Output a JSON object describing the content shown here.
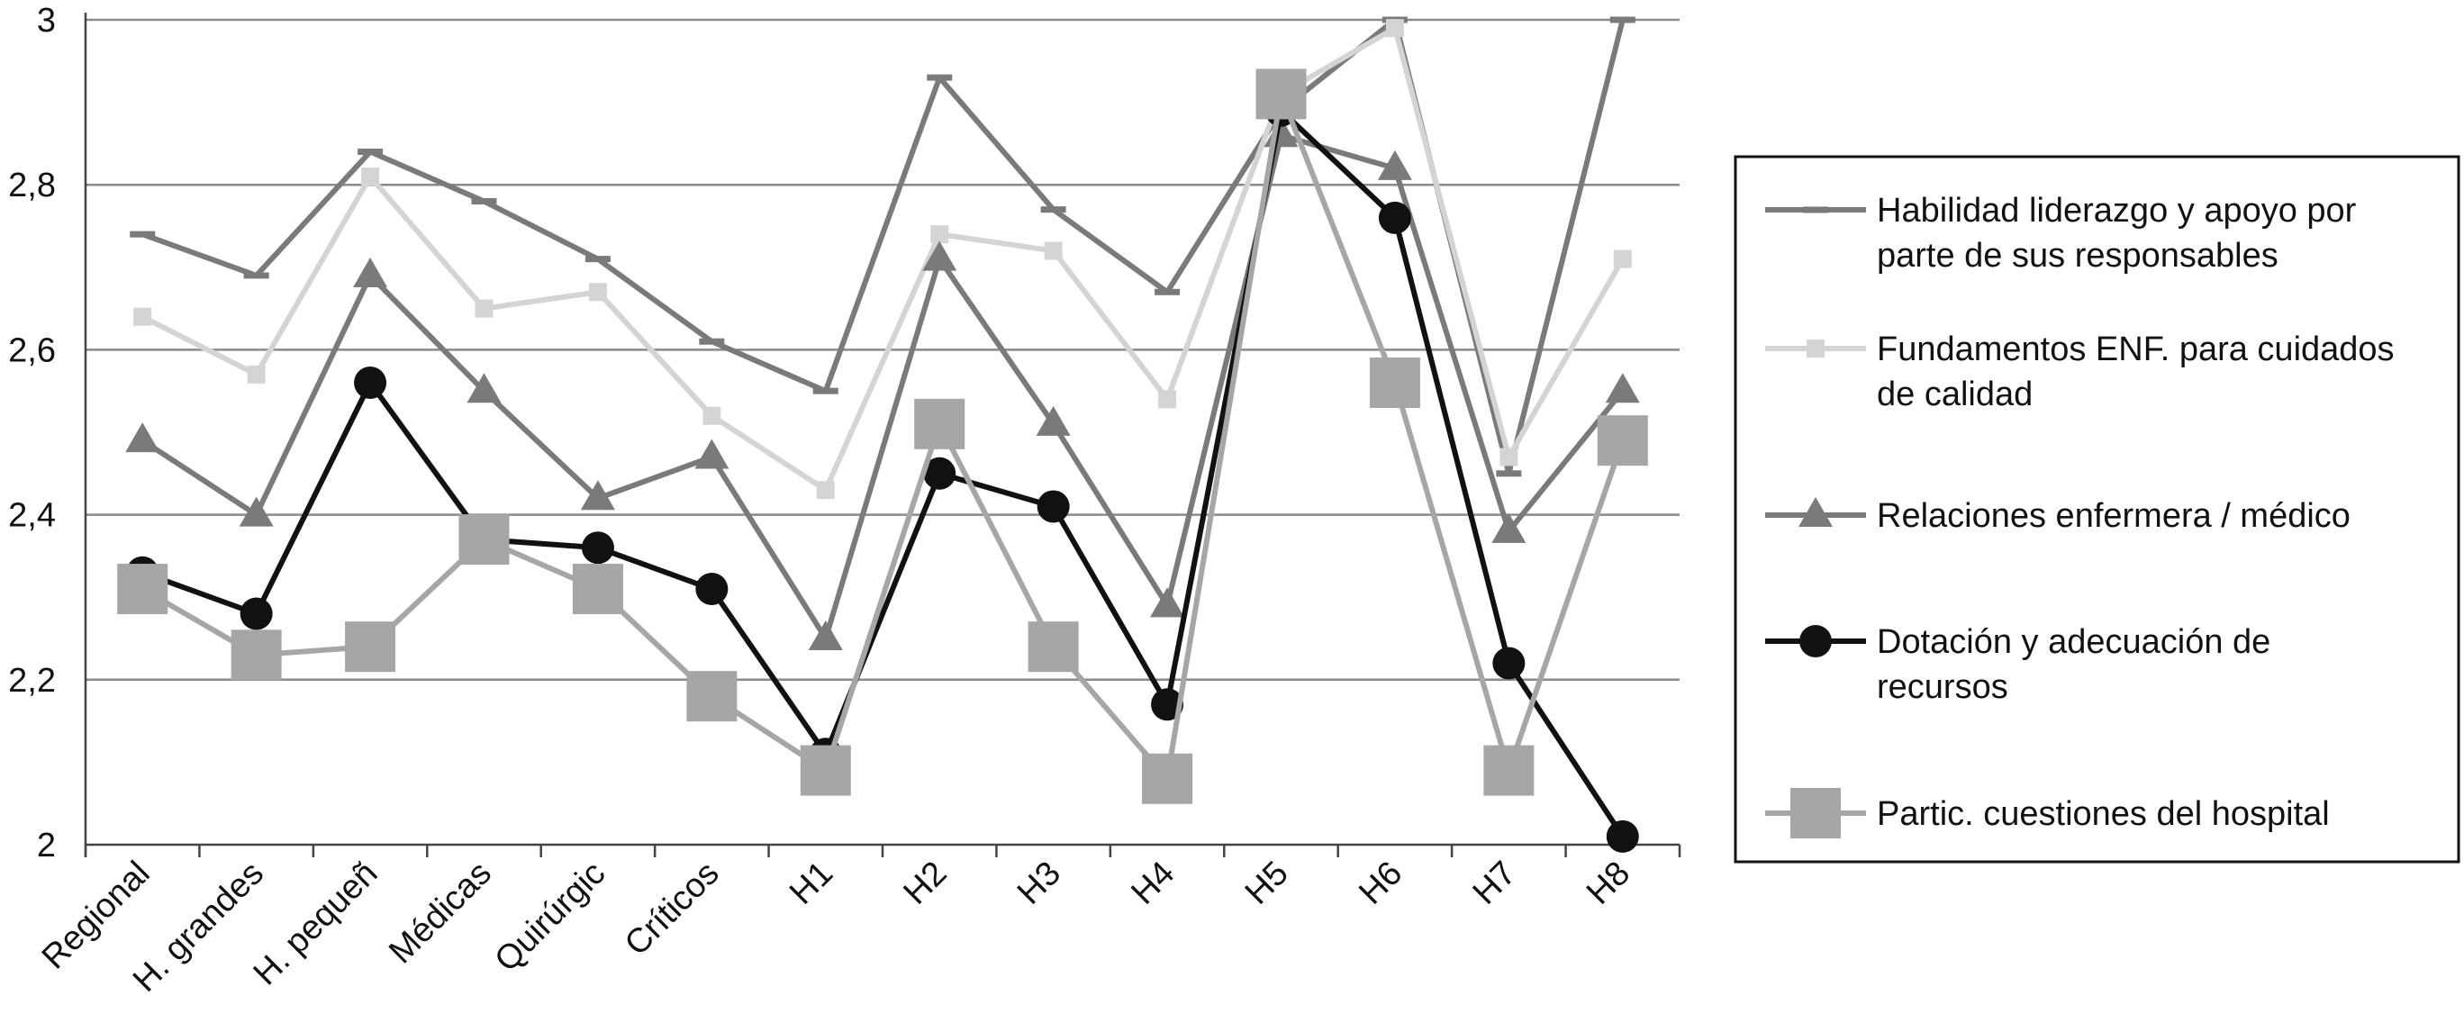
{
  "chart_data": {
    "type": "line",
    "title": "",
    "xlabel": "",
    "ylabel": "",
    "ylim": [
      2,
      3
    ],
    "yticks": [
      "2",
      "2,2",
      "2,4",
      "2,6",
      "2,8",
      "3"
    ],
    "ytick_values": [
      2,
      2.2,
      2.4,
      2.6,
      2.8,
      3
    ],
    "grid": "horizontal",
    "legend_position": "right",
    "categories": [
      "Regional",
      "H. grandes",
      "H. pequeñ",
      "Médicas",
      "Quirúrgic",
      "Críticos",
      "H1",
      "H2",
      "H3",
      "H4",
      "H5",
      "H6",
      "H7",
      "H8"
    ],
    "series": [
      {
        "name": "Habilidad liderazgo y apoyo por parte de sus responsables",
        "legend_lines": [
          "Habilidad liderazgo y apoyo por",
          "parte de sus responsables"
        ],
        "marker": "dash",
        "color": "#7a7a7a",
        "values": [
          2.74,
          2.69,
          2.84,
          2.78,
          2.71,
          2.61,
          2.55,
          2.93,
          2.77,
          2.67,
          2.89,
          3.0,
          2.45,
          3.0
        ]
      },
      {
        "name": "Fundamentos ENF. para cuidados de calidad",
        "legend_lines": [
          "Fundamentos ENF. para cuidados",
          "de calidad"
        ],
        "marker": "small-square",
        "color": "#d4d4d4",
        "values": [
          2.64,
          2.57,
          2.81,
          2.65,
          2.67,
          2.52,
          2.43,
          2.74,
          2.72,
          2.54,
          2.91,
          2.99,
          2.47,
          2.71
        ]
      },
      {
        "name": "Relaciones enfermera / médico",
        "legend_lines": [
          "Relaciones enfermera / médico"
        ],
        "marker": "triangle",
        "color": "#7a7a7a",
        "values": [
          2.49,
          2.4,
          2.69,
          2.55,
          2.42,
          2.47,
          2.25,
          2.71,
          2.51,
          2.29,
          2.86,
          2.82,
          2.38,
          2.55
        ]
      },
      {
        "name": "Dotación y adecuación de recursos",
        "legend_lines": [
          "Dotación y adecuación de",
          "recursos"
        ],
        "marker": "circle",
        "color": "#111111",
        "values": [
          2.33,
          2.28,
          2.56,
          2.37,
          2.36,
          2.31,
          2.11,
          2.45,
          2.41,
          2.17,
          2.89,
          2.76,
          2.22,
          2.01
        ]
      },
      {
        "name": "Partic. cuestiones del hospital",
        "legend_lines": [
          "Partic. cuestiones del hospital"
        ],
        "marker": "big-square",
        "color": "#a6a6a6",
        "values": [
          2.31,
          2.23,
          2.24,
          2.37,
          2.31,
          2.18,
          2.09,
          2.51,
          2.24,
          2.08,
          2.91,
          2.56,
          2.09,
          2.49
        ]
      }
    ]
  }
}
